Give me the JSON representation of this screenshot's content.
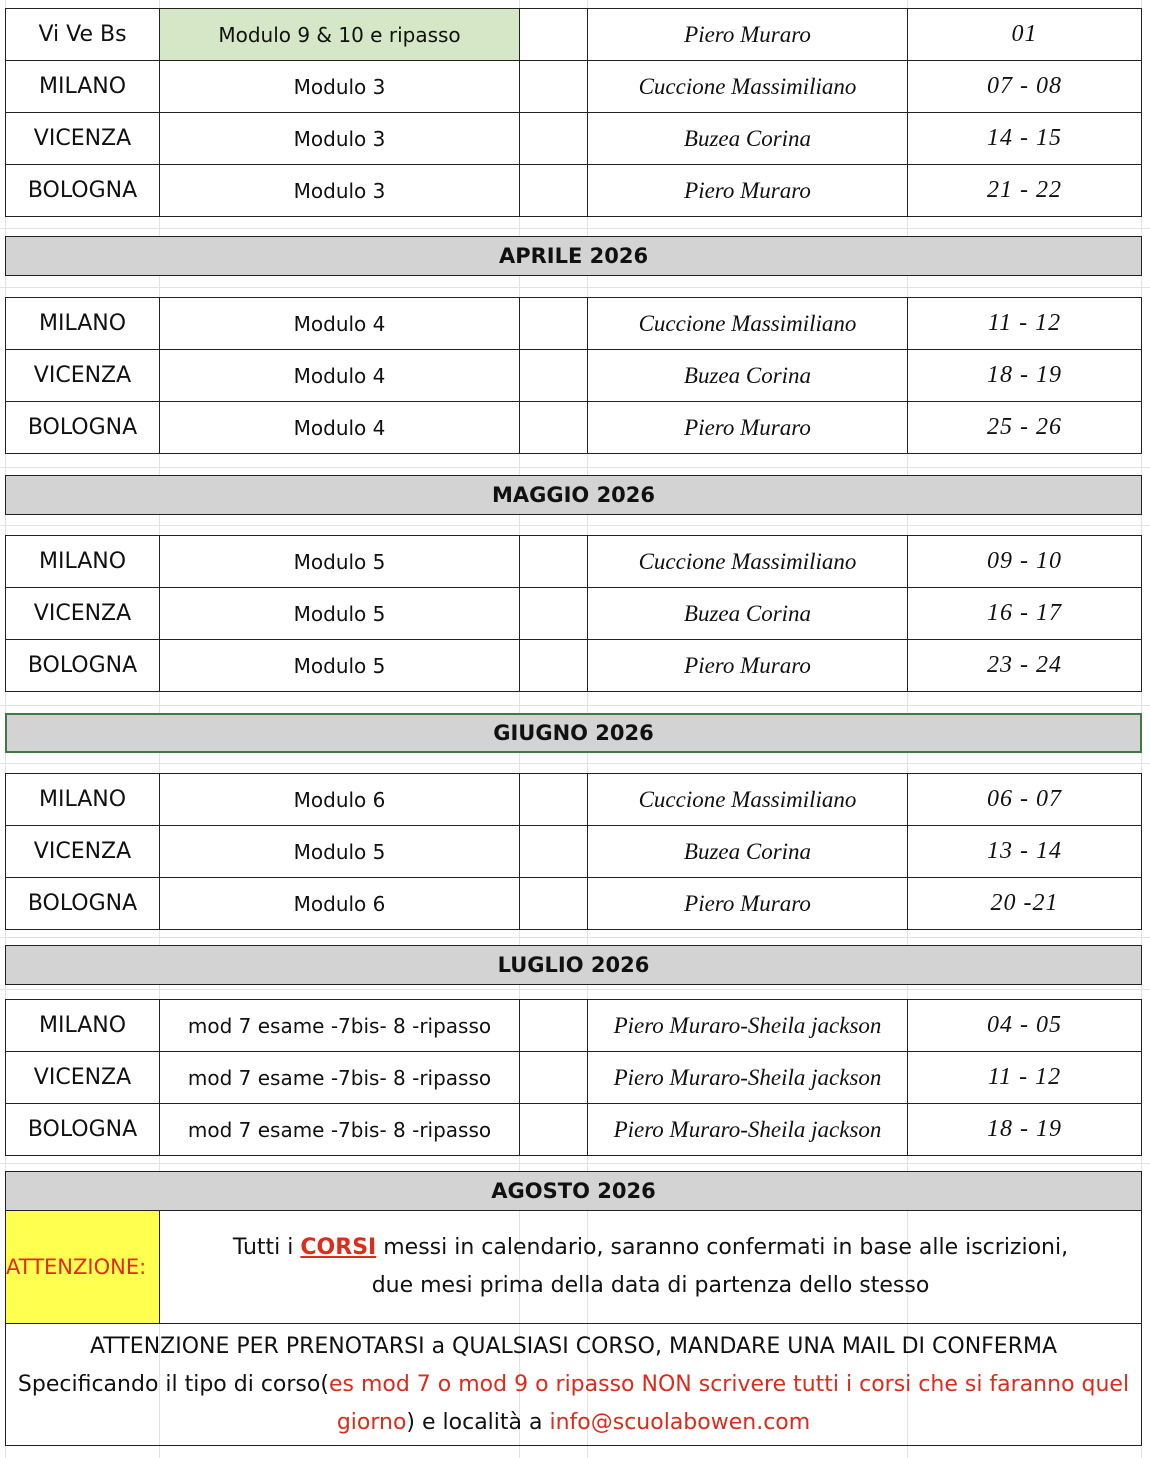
{
  "top_rows": [
    [
      "Vi Ve Bs",
      "Modulo 9 & 10 e ripasso",
      "Piero Muraro",
      "01"
    ],
    [
      "MILANO",
      "Modulo 3",
      "Cuccione Massimiliano",
      "07 - 08"
    ],
    [
      "VICENZA",
      "Modulo  3",
      "Buzea Corina",
      "14 - 15"
    ],
    [
      "BOLOGNA",
      "Modulo 3",
      "Piero Muraro",
      "21 - 22"
    ]
  ],
  "sections": [
    {
      "title": "APRILE 2026",
      "rows": [
        [
          "MILANO",
          "Modulo 4",
          "Cuccione Massimiliano",
          "11 - 12"
        ],
        [
          "VICENZA",
          "Modulo 4",
          "Buzea Corina",
          "18 - 19"
        ],
        [
          "BOLOGNA",
          "Modulo 4",
          "Piero Muraro",
          "25 - 26"
        ]
      ]
    },
    {
      "title": "MAGGIO 2026",
      "rows": [
        [
          "MILANO",
          "Modulo 5",
          "Cuccione Massimiliano",
          "09 - 10"
        ],
        [
          "VICENZA",
          "Modulo 5",
          "Buzea Corina",
          "16 - 17"
        ],
        [
          "BOLOGNA",
          "Modulo 5",
          "Piero Muraro",
          "23 - 24"
        ]
      ]
    },
    {
      "title": "GIUGNO 2026",
      "rows": [
        [
          "MILANO",
          "Modulo 6",
          "Cuccione Massimiliano",
          "06 - 07"
        ],
        [
          "VICENZA",
          "Modulo 5",
          "Buzea Corina",
          "13 - 14"
        ],
        [
          "BOLOGNA",
          "Modulo 6",
          "Piero Muraro",
          "20 -21"
        ]
      ]
    },
    {
      "title": "LUGLIO 2026",
      "rows": [
        [
          "MILANO",
          "mod 7 esame -7bis- 8 -ripasso",
          "Piero Muraro-Sheila jackson",
          "04 - 05"
        ],
        [
          "VICENZA",
          "mod 7 esame -7bis- 8 -ripasso",
          "Piero Muraro-Sheila jackson",
          "11 - 12"
        ],
        [
          "BOLOGNA",
          "mod 7 esame -7bis- 8 -ripasso",
          "Piero Muraro-Sheila jackson",
          "18 - 19"
        ]
      ]
    },
    {
      "title": "AGOSTO 2026",
      "rows": []
    }
  ],
  "notice": {
    "label": "ATTENZIONE:",
    "line1": [
      "Tutti i ",
      "CORSI",
      " messi in calendario, saranno confermati in base alle iscrizioni,"
    ],
    "line2": "due mesi prima della data di partenza dello stesso"
  },
  "footer": {
    "line1": "ATTENZIONE PER PRENOTARSI a QUALSIASI CORSO, MANDARE UNA MAIL DI CONFERMA",
    "line2": [
      "Specificando il tipo di corso(",
      "es mod 7 o mod 9 o ripasso NON scrivere tutti i corsi che si faranno quel giorno",
      ") e località a ",
      "info@scuolabowen.com"
    ]
  }
}
